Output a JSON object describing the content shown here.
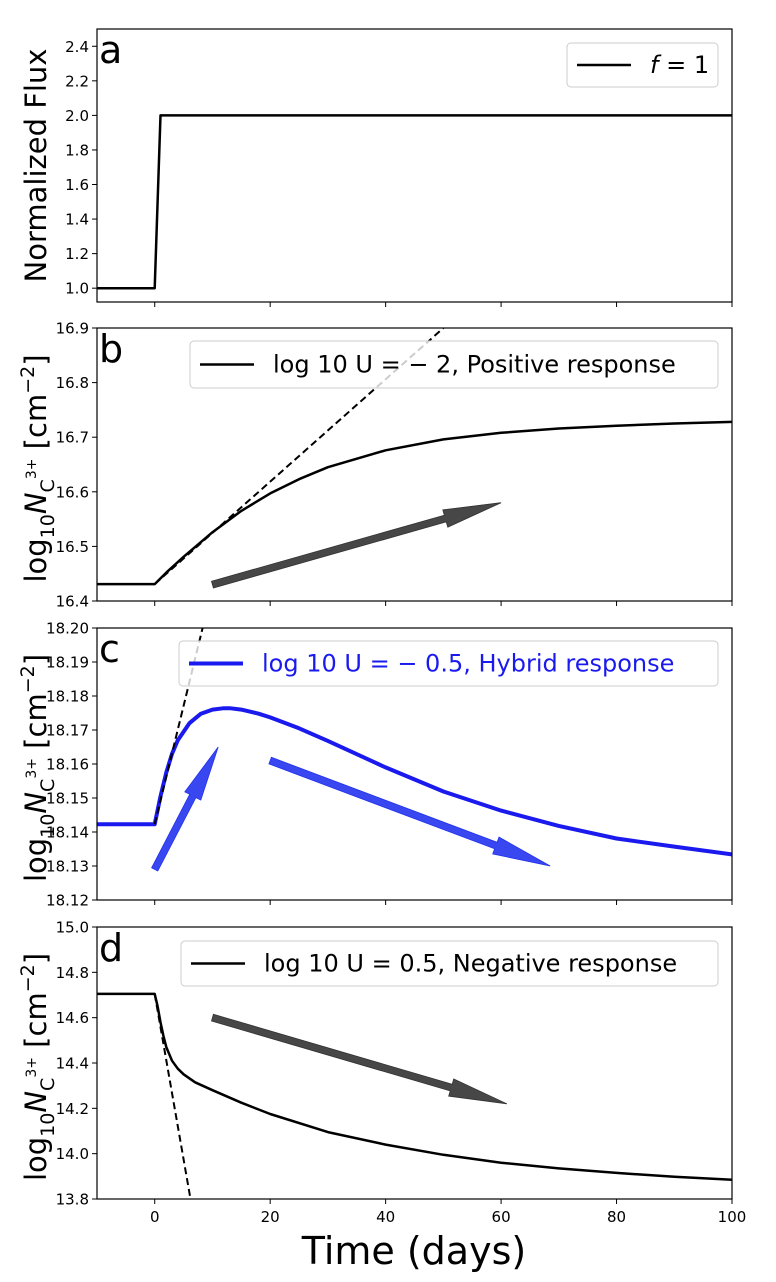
{
  "chart_data": {
    "type": "line",
    "xlabel": "Time (days)",
    "xlim": [
      -10,
      100
    ],
    "xticks": [
      0,
      20,
      40,
      60,
      80,
      100
    ],
    "xtick_labels": [
      "0",
      "20",
      "40",
      "60",
      "80",
      "100"
    ],
    "grid": false,
    "panels": [
      {
        "id": "a",
        "letter": "a",
        "ylabel_text": "Normalized Flux",
        "ylim": [
          0.92,
          2.5
        ],
        "yticks": [
          1.0,
          1.2,
          1.4,
          1.6,
          1.8,
          2.0,
          2.2,
          2.4
        ],
        "ytick_labels": [
          "1.0",
          "1.2",
          "1.4",
          "1.6",
          "1.8",
          "2.0",
          "2.2",
          "2.4"
        ],
        "legend": {
          "label": "f = 1",
          "label_italic_part": "f",
          "label_rest": " = 1",
          "color": "#000000",
          "position": "top-right"
        },
        "series": [
          {
            "name": "f = 1",
            "color": "#000000",
            "style": "solid",
            "x": [
              -10,
              0,
              1,
              100
            ],
            "y": [
              1.0,
              1.0,
              2.0,
              2.0
            ]
          }
        ],
        "arrows": []
      },
      {
        "id": "b",
        "letter": "b",
        "ylabel_text": "log10 N_C3+ [cm^-2]",
        "ylim": [
          16.4,
          16.9
        ],
        "yticks": [
          16.4,
          16.5,
          16.6,
          16.7,
          16.8,
          16.9
        ],
        "ytick_labels": [
          "16.4",
          "16.5",
          "16.6",
          "16.7",
          "16.8",
          "16.9"
        ],
        "legend": {
          "label": "log 10 U = − 2,  Positive response",
          "color": "#000000",
          "position": "top-right"
        },
        "series": [
          {
            "name": "log 10 U = -2, Positive response",
            "color": "#000000",
            "style": "solid",
            "x": [
              -10,
              0,
              2,
              5,
              10,
              15,
              20,
              25,
              30,
              40,
              50,
              60,
              70,
              80,
              90,
              100
            ],
            "y": [
              16.431,
              16.431,
              16.452,
              16.481,
              16.526,
              16.565,
              16.597,
              16.623,
              16.645,
              16.676,
              16.696,
              16.708,
              16.716,
              16.721,
              16.725,
              16.728
            ]
          },
          {
            "name": "initial slope",
            "color": "#000000",
            "style": "dashed",
            "x": [
              0,
              50
            ],
            "y": [
              16.431,
              16.9
            ]
          }
        ],
        "arrows": [
          {
            "from": [
              10,
              16.43
            ],
            "to": [
              60,
              16.58
            ],
            "color": "#333333",
            "direction": "up"
          }
        ]
      },
      {
        "id": "c",
        "letter": "c",
        "ylabel_text": "log10 N_C3+ [cm^-2]",
        "ylim": [
          18.12,
          18.2
        ],
        "yticks": [
          18.12,
          18.13,
          18.14,
          18.15,
          18.16,
          18.17,
          18.18,
          18.19,
          18.2
        ],
        "ytick_labels": [
          "18.12",
          "18.13",
          "18.14",
          "18.15",
          "18.16",
          "18.17",
          "18.18",
          "18.19",
          "18.20"
        ],
        "legend": {
          "label": "log 10 U = − 0.5,  Hybrid response",
          "color": "#1a1aee",
          "position": "top-right"
        },
        "series": [
          {
            "name": "log 10 U = -0.5, Hybrid response",
            "color": "#1a1aee",
            "style": "solid",
            "x": [
              -10,
              0,
              1,
              2,
              3,
              4,
              6,
              8,
              10,
              12,
              13,
              15,
              18,
              20,
              25,
              30,
              40,
              50,
              60,
              70,
              80,
              90,
              100
            ],
            "y": [
              18.1423,
              18.1423,
              18.1505,
              18.1575,
              18.163,
              18.167,
              18.172,
              18.1748,
              18.176,
              18.1764,
              18.1764,
              18.176,
              18.1748,
              18.1737,
              18.1705,
              18.1668,
              18.159,
              18.1519,
              18.1463,
              18.1418,
              18.1381,
              18.1357,
              18.1334
            ]
          },
          {
            "name": "initial slope",
            "color": "#000000",
            "style": "dashed",
            "x": [
              0,
              8.3
            ],
            "y": [
              18.1423,
              18.2
            ]
          }
        ],
        "arrows": [
          {
            "from": [
              0,
              18.129
            ],
            "to": [
              11,
              18.165
            ],
            "color": "#2233ee",
            "direction": "up"
          },
          {
            "from": [
              20,
              18.161
            ],
            "to": [
              68.5,
              18.13
            ],
            "color": "#2233ee",
            "direction": "down"
          }
        ]
      },
      {
        "id": "d",
        "letter": "d",
        "ylabel_text": "log10 N_C3+ [cm^-2]",
        "ylim": [
          13.8,
          15.0
        ],
        "yticks": [
          13.8,
          14.0,
          14.2,
          14.4,
          14.6,
          14.8,
          15.0
        ],
        "ytick_labels": [
          "13.8",
          "14.0",
          "14.2",
          "14.4",
          "14.6",
          "14.8",
          "15.0"
        ],
        "legend": {
          "label": "log 10 U = 0.5,  Negative response",
          "color": "#000000",
          "position": "top-right"
        },
        "series": [
          {
            "name": "log 10 U = 0.5, Negative response",
            "color": "#000000",
            "style": "solid",
            "x": [
              -10,
              0,
              0.5,
              1,
              1.5,
              2,
              3,
              4,
              5,
              7,
              10,
              15,
              20,
              30,
              40,
              50,
              60,
              70,
              80,
              90,
              100
            ],
            "y": [
              14.705,
              14.705,
              14.65,
              14.58,
              14.52,
              14.47,
              14.41,
              14.375,
              14.35,
              14.315,
              14.28,
              14.225,
              14.175,
              14.095,
              14.04,
              13.995,
              13.96,
              13.935,
              13.915,
              13.898,
              13.885
            ]
          },
          {
            "name": "initial slope",
            "color": "#000000",
            "style": "dashed",
            "x": [
              0,
              6.2
            ],
            "y": [
              14.705,
              13.8
            ]
          }
        ],
        "arrows": [
          {
            "from": [
              10,
              14.6
            ],
            "to": [
              61,
              14.22
            ],
            "color": "#333333",
            "direction": "down"
          }
        ]
      }
    ]
  }
}
